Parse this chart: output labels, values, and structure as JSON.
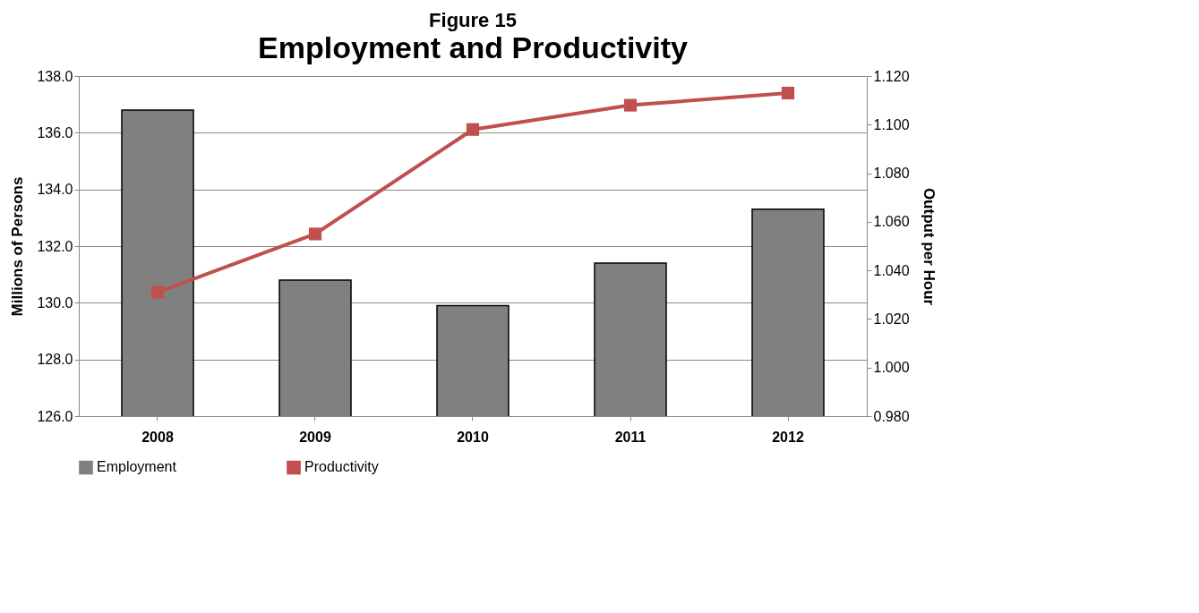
{
  "chart_data": {
    "type": "bar",
    "title": "Figure 15",
    "subtitle": "Employment and Productivity",
    "ylabel": "Millions of Persons",
    "y2label": "Output per Hour",
    "categories": [
      "2008",
      "2009",
      "2010",
      "2011",
      "2012"
    ],
    "series": [
      {
        "name": "Employment",
        "color": "#808080",
        "values": [
          136.8,
          130.8,
          129.9,
          131.4,
          133.3
        ]
      },
      {
        "name": "Productivity",
        "type": "line",
        "axis": "y2",
        "color": "#c0504d",
        "marker": "square",
        "values": [
          1.031,
          1.055,
          1.098,
          1.108,
          1.113
        ]
      }
    ],
    "ylim": [
      126,
      138
    ],
    "yticks": [
      {
        "value": 126,
        "label": "126.0"
      },
      {
        "value": 128,
        "label": "128.0"
      },
      {
        "value": 130,
        "label": "130.0"
      },
      {
        "value": 132,
        "label": "132.0"
      },
      {
        "value": 134,
        "label": "134.0"
      },
      {
        "value": 136,
        "label": "136.0"
      },
      {
        "value": 138,
        "label": "138.0"
      }
    ],
    "y2lim": [
      0.98,
      1.12
    ],
    "y2ticks": [
      {
        "value": 0.98,
        "label": "0.980"
      },
      {
        "value": 1.0,
        "label": "1.000"
      },
      {
        "value": 1.02,
        "label": "1.020"
      },
      {
        "value": 1.04,
        "label": "1.040"
      },
      {
        "value": 1.06,
        "label": "1.060"
      },
      {
        "value": 1.08,
        "label": "1.080"
      },
      {
        "value": 1.1,
        "label": "1.100"
      },
      {
        "value": 1.12,
        "label": "1.120"
      }
    ],
    "grid": "y",
    "legend": "bottom"
  }
}
